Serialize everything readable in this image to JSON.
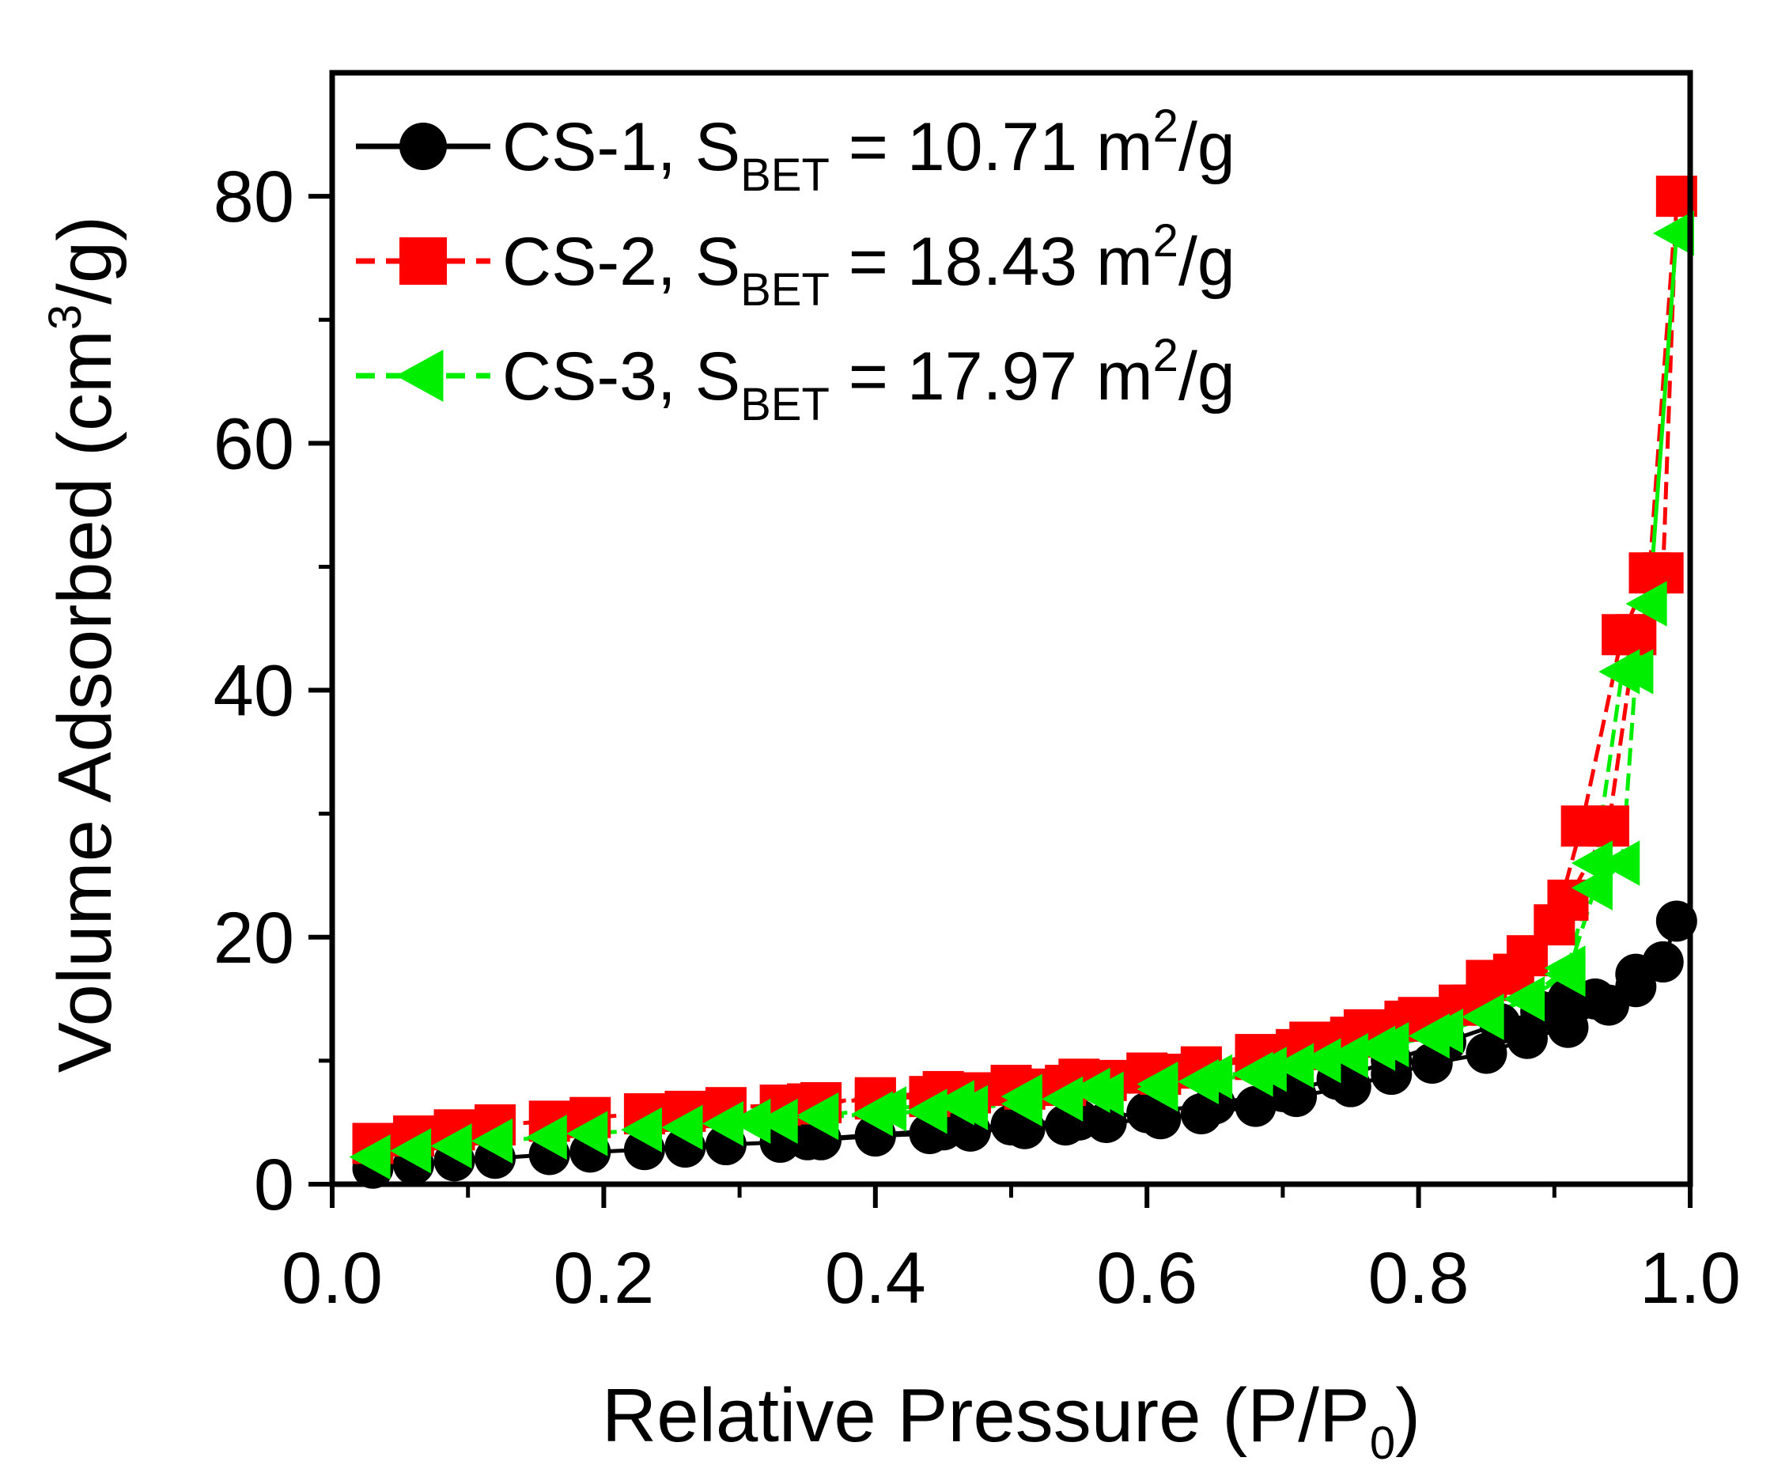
{
  "chart_data": {
    "type": "scatter",
    "xlabel": "Relative Pressure (P/P0)",
    "ylabel": "Volume Adsorbed (cm3/g)",
    "xlabel_parts": {
      "before": "Relative Pressure (P/P",
      "sub": "0",
      "after": ")"
    },
    "ylabel_parts": {
      "before": "Volume Adsorbed (cm",
      "sup": "3",
      "after": "/g)"
    },
    "xlim": [
      0,
      1.0
    ],
    "ylim": [
      0,
      90
    ],
    "xticks": [
      0.0,
      0.2,
      0.4,
      0.6,
      0.8,
      1.0
    ],
    "xtick_labels": [
      "0.0",
      "0.2",
      "0.4",
      "0.6",
      "0.8",
      "1.0"
    ],
    "yticks": [
      0,
      20,
      40,
      60,
      80
    ],
    "ytick_labels": [
      "0",
      "20",
      "40",
      "60",
      "80"
    ],
    "grid": false,
    "legend_position": "top-left",
    "series": [
      {
        "name": "CS-1, SBET = 10.71 m2/g",
        "label_parts": {
          "prefix": "CS-1, S",
          "sub": "BET",
          "mid": " = 10.71 m",
          "sup": "2",
          "suffix": "/g"
        },
        "color": "#000000",
        "line_style": "solid",
        "marker": "circle",
        "x": [
          0.03,
          0.06,
          0.09,
          0.12,
          0.16,
          0.19,
          0.23,
          0.26,
          0.29,
          0.33,
          0.36,
          0.4,
          0.44,
          0.47,
          0.51,
          0.54,
          0.57,
          0.61,
          0.64,
          0.68,
          0.71,
          0.75,
          0.78,
          0.81,
          0.85,
          0.88,
          0.91,
          0.94,
          0.96,
          0.98,
          0.99,
          0.98,
          0.96,
          0.93,
          0.91,
          0.89,
          0.86,
          0.82,
          0.78,
          0.74,
          0.7,
          0.65,
          0.6,
          0.55,
          0.5,
          0.45,
          0.4,
          0.35
        ],
        "y": [
          1.3,
          1.6,
          1.9,
          2.1,
          2.4,
          2.6,
          2.8,
          3.0,
          3.2,
          3.4,
          3.6,
          3.9,
          4.1,
          4.3,
          4.5,
          4.8,
          5.0,
          5.3,
          5.7,
          6.3,
          7.1,
          7.9,
          8.9,
          9.8,
          10.6,
          11.8,
          12.7,
          14.5,
          17.0,
          18.0,
          21.3,
          18.0,
          16.0,
          15.0,
          15.0,
          14.0,
          13.0,
          11.5,
          10.0,
          8.5,
          7.5,
          6.5,
          5.8,
          5.2,
          4.8,
          4.4,
          4.0,
          3.6
        ]
      },
      {
        "name": "CS-2, SBET = 18.43 m2/g",
        "label_parts": {
          "prefix": "CS-2, S",
          "sub": "BET",
          "mid": " = 18.43 m",
          "sup": "2",
          "suffix": "/g"
        },
        "color": "#ff0000",
        "line_style": "dashed",
        "marker": "square",
        "x": [
          0.03,
          0.06,
          0.09,
          0.12,
          0.16,
          0.19,
          0.23,
          0.26,
          0.29,
          0.33,
          0.36,
          0.4,
          0.44,
          0.47,
          0.51,
          0.54,
          0.57,
          0.61,
          0.64,
          0.68,
          0.71,
          0.75,
          0.79,
          0.83,
          0.85,
          0.88,
          0.91,
          0.94,
          0.96,
          0.98,
          0.99,
          0.97,
          0.95,
          0.92,
          0.9,
          0.87,
          0.84,
          0.8,
          0.76,
          0.72,
          0.68,
          0.64,
          0.6,
          0.55,
          0.5,
          0.45,
          0.4,
          0.35
        ],
        "y": [
          3.3,
          3.9,
          4.4,
          4.8,
          5.1,
          5.4,
          5.7,
          5.9,
          6.2,
          6.4,
          6.6,
          6.9,
          7.1,
          7.4,
          7.7,
          8.0,
          8.4,
          8.9,
          9.4,
          10.1,
          10.9,
          11.9,
          13.2,
          14.5,
          16.5,
          18.5,
          23.0,
          29.0,
          44.5,
          49.5,
          80.0,
          49.5,
          44.5,
          29.0,
          21.0,
          17.0,
          14.5,
          13.5,
          12.5,
          11.5,
          10.5,
          9.5,
          9.0,
          8.5,
          8.0,
          7.5,
          7.0,
          6.5
        ]
      },
      {
        "name": "CS-3, SBET = 17.97 m2/g",
        "label_parts": {
          "prefix": "CS-3, S",
          "sub": "BET",
          "mid": " = 17.97 m",
          "sup": "2",
          "suffix": "/g"
        },
        "color": "#00ee00",
        "line_style": "dashed",
        "marker": "triangle-left",
        "x": [
          0.03,
          0.06,
          0.09,
          0.12,
          0.16,
          0.19,
          0.23,
          0.26,
          0.29,
          0.33,
          0.36,
          0.4,
          0.44,
          0.47,
          0.51,
          0.54,
          0.57,
          0.61,
          0.64,
          0.68,
          0.71,
          0.75,
          0.78,
          0.82,
          0.85,
          0.88,
          0.91,
          0.93,
          0.95,
          0.96,
          0.97,
          0.99,
          0.97,
          0.95,
          0.93,
          0.91,
          0.88,
          0.85,
          0.81,
          0.77,
          0.73,
          0.69,
          0.65,
          0.61,
          0.56,
          0.51,
          0.46,
          0.41,
          0.36,
          0.31
        ],
        "y": [
          2.2,
          2.7,
          3.1,
          3.5,
          3.8,
          4.1,
          4.4,
          4.6,
          4.9,
          5.1,
          5.4,
          5.7,
          5.9,
          6.2,
          6.5,
          6.9,
          7.3,
          7.7,
          8.3,
          8.9,
          9.6,
          10.4,
          11.3,
          12.4,
          13.6,
          15.0,
          17.0,
          24.0,
          26.0,
          41.5,
          47.0,
          77.0,
          47.0,
          41.5,
          26.0,
          17.5,
          15.0,
          13.5,
          12.0,
          11.0,
          10.0,
          9.3,
          8.7,
          8.1,
          7.6,
          7.1,
          6.6,
          6.1,
          5.6,
          5.1
        ]
      }
    ]
  }
}
